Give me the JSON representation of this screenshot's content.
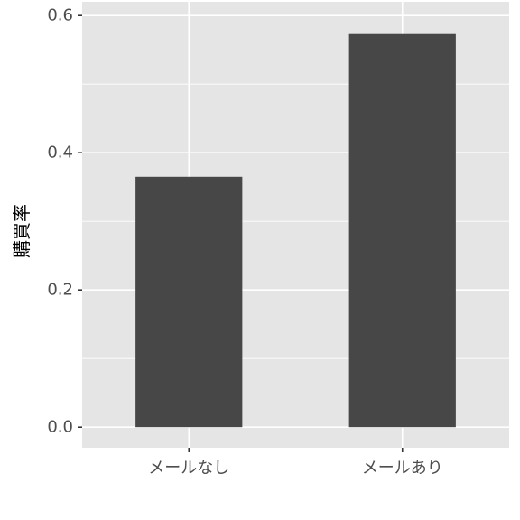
{
  "chart_data": {
    "type": "bar",
    "title": "",
    "xlabel": "",
    "ylabel": "購買率",
    "categories": [
      "メールなし",
      "メールあり"
    ],
    "values": [
      0.365,
      0.573
    ],
    "ylim": [
      -0.03,
      0.62
    ],
    "yticks": [
      0.0,
      0.2,
      0.4,
      0.6
    ],
    "ytick_labels": [
      "0.0",
      "0.2",
      "0.4",
      "0.6"
    ],
    "grid": true,
    "legend": "none",
    "colors": {
      "panel_background": "#e5e5e5",
      "grid": "#ffffff",
      "bar": "#474747",
      "tick_text": "#4d4d4d",
      "tick_mark": "#333333"
    }
  }
}
